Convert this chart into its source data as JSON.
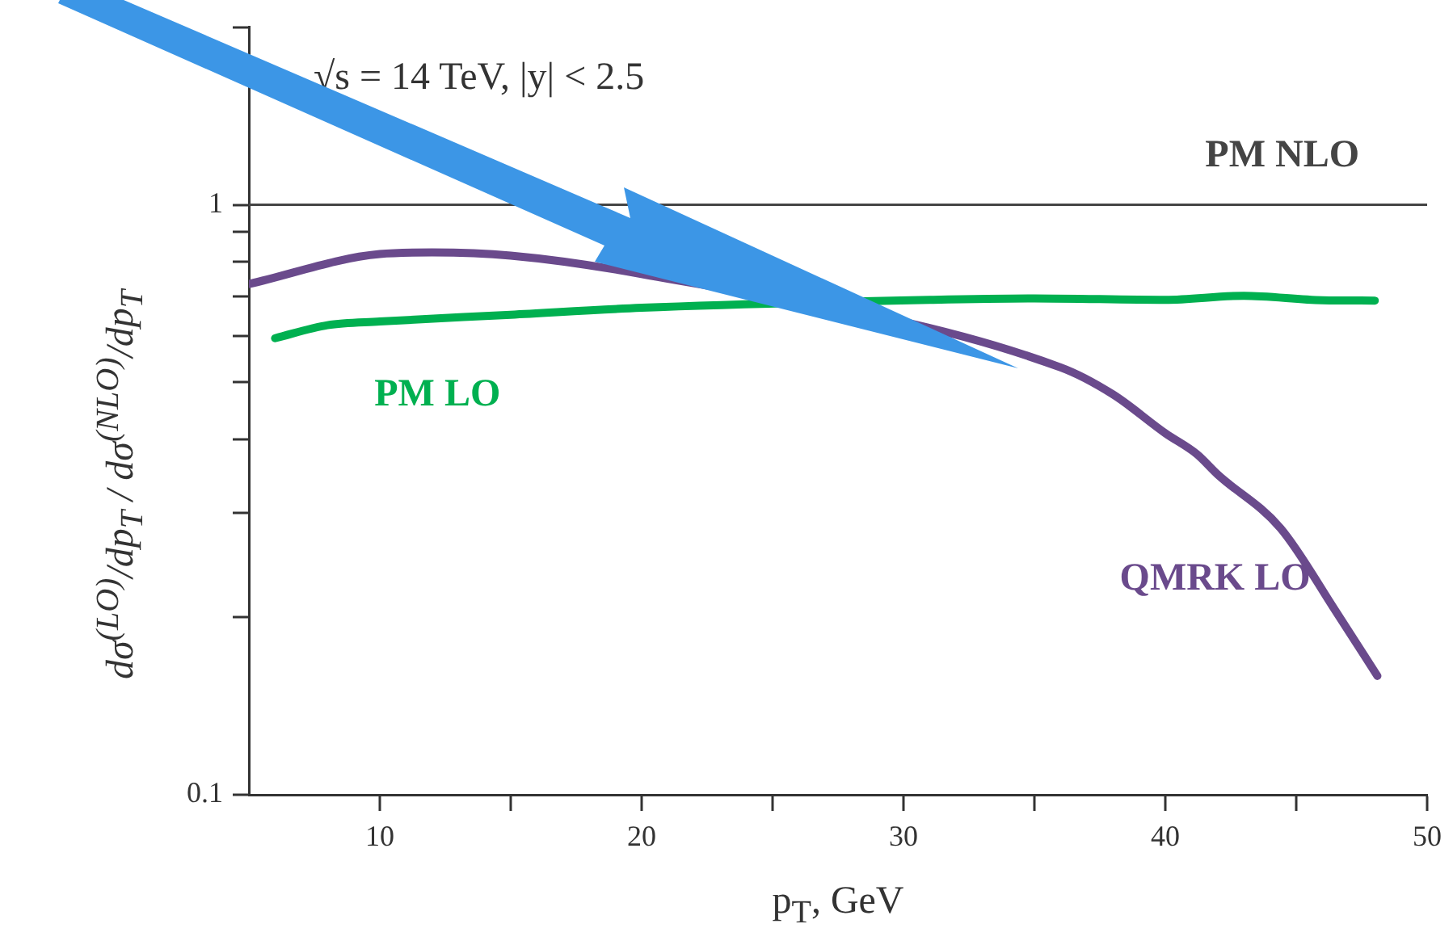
{
  "chart_data": {
    "type": "line",
    "xlabel": "p$_{T}$, GeV",
    "ylabel": "dσ$^{(LO)}$/dp$_{T}$  /  dσ$^{(NLO)}$/dp$_{T}$",
    "annotations": [
      "√s = 14 TeV, |y| < 2.5"
    ],
    "log": "y",
    "grid": false,
    "legend": false,
    "marker": "none",
    "line_style": "solid",
    "xlim": [
      5,
      50
    ],
    "xticks": [
      10,
      {
        "value": 15,
        "label": null
      },
      20,
      {
        "value": 25,
        "label": null
      },
      30,
      {
        "value": 35,
        "label": null
      },
      40,
      {
        "value": 45,
        "label": null
      },
      50
    ],
    "ylim": [
      0.1,
      2
    ],
    "yticks": [
      0.1,
      {
        "value": 0.2,
        "label": null
      },
      {
        "value": 0.3,
        "label": null
      },
      {
        "value": 0.4,
        "label": null
      },
      {
        "value": 0.5,
        "label": null
      },
      {
        "value": 0.6,
        "label": null
      },
      {
        "value": 0.7,
        "label": null
      },
      {
        "value": 0.8,
        "label": null
      },
      {
        "value": 0.9,
        "label": null
      },
      1,
      {
        "value": 2,
        "label": null
      }
    ],
    "ref_lines": [
      {
        "axis": "y",
        "value": 1,
        "label": "PM NLO",
        "color": "#444444"
      }
    ],
    "series": [
      {
        "name": "PM LO",
        "color": "#00b050",
        "x": [
          6,
          8,
          10,
          15,
          20,
          31,
          35,
          40,
          43,
          46,
          48
        ],
        "values": [
          0.594,
          0.625,
          0.634,
          0.651,
          0.669,
          0.69,
          0.694,
          0.69,
          0.701,
          0.689,
          0.688
        ]
      },
      {
        "name": "QMRK LO",
        "color": "#6a4a8c",
        "x": [
          5,
          10,
          12,
          15,
          20,
          36,
          38,
          40,
          41.2,
          42,
          44.4,
          46.5,
          48.1
        ],
        "values": [
          0.734,
          0.825,
          0.83,
          0.82,
          0.763,
          0.53,
          0.477,
          0.41,
          0.378,
          0.349,
          0.283,
          0.205,
          0.159
        ]
      }
    ]
  }
}
